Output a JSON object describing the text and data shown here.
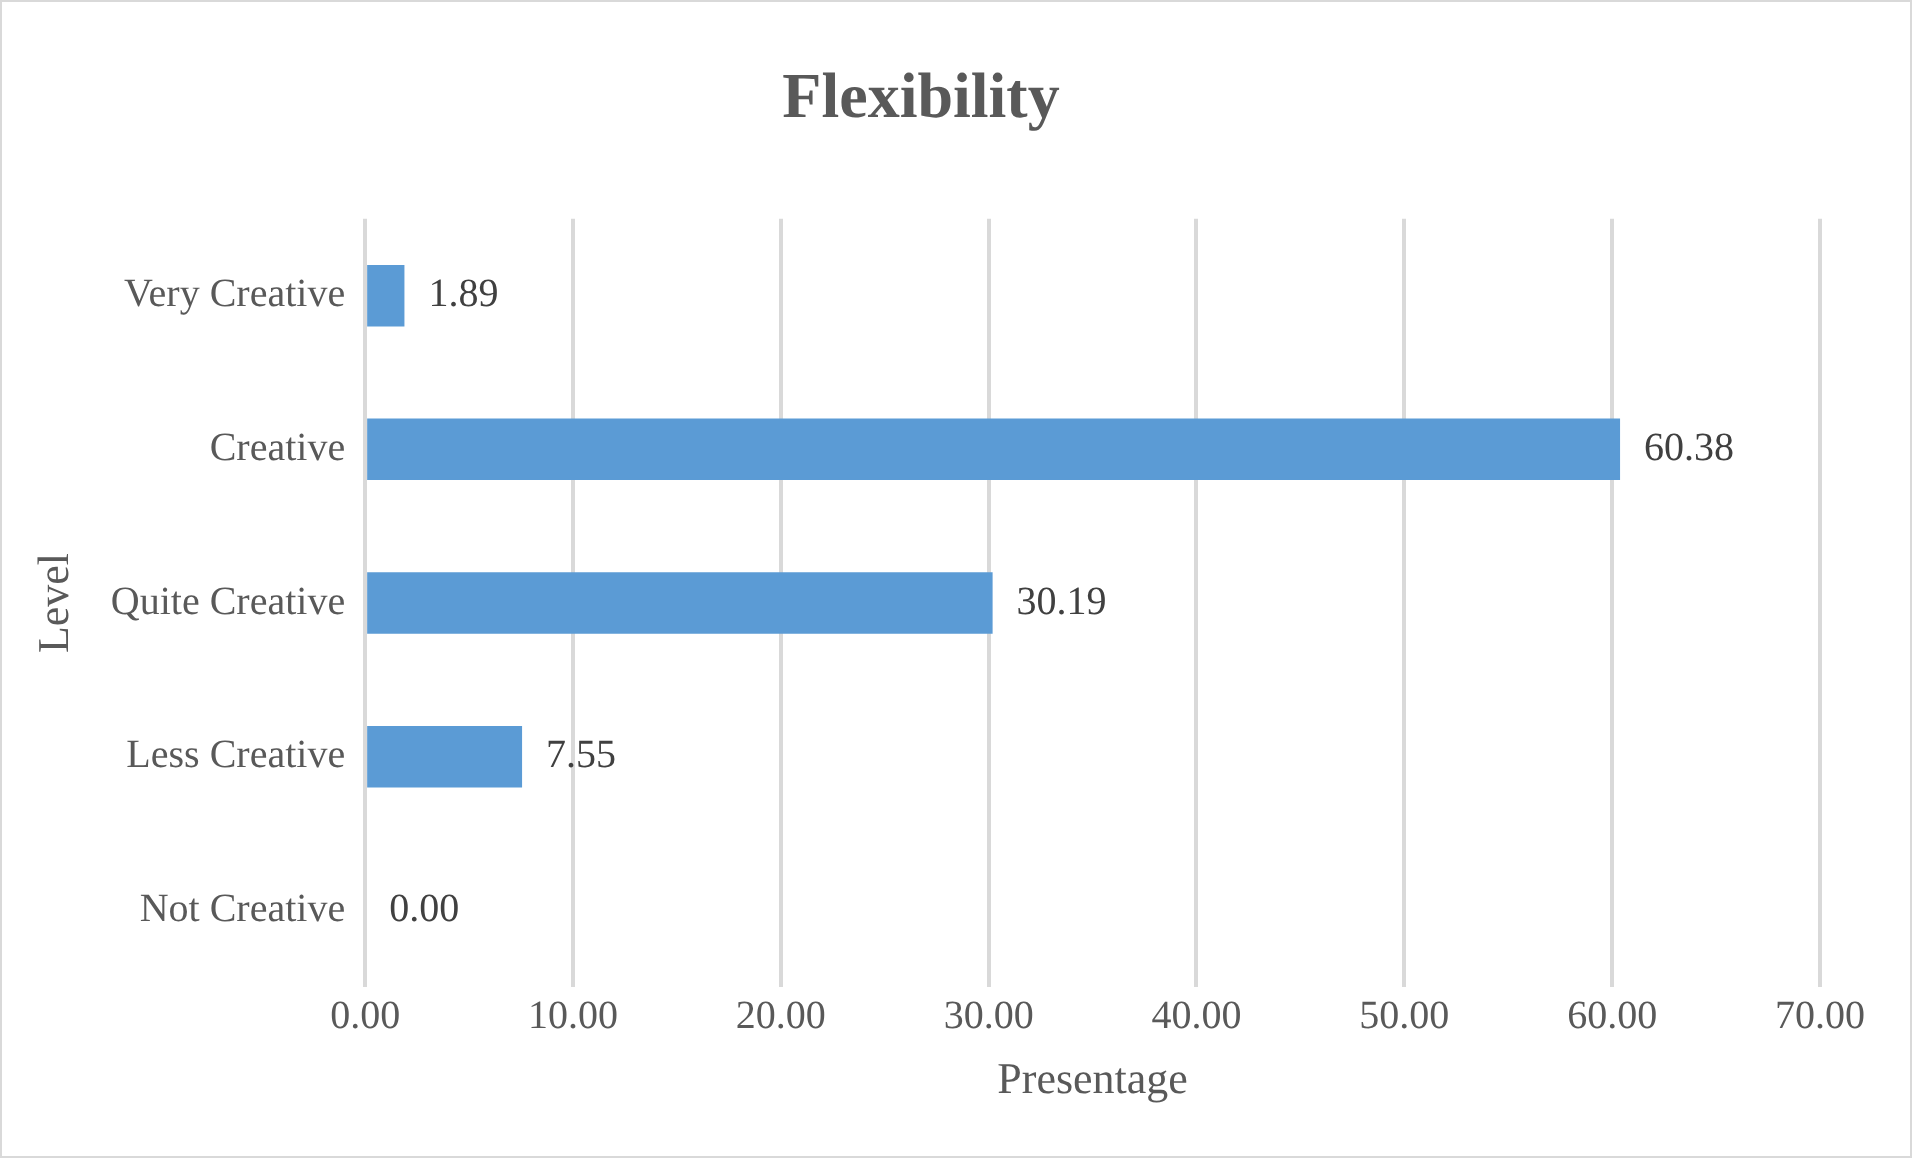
{
  "chart_data": {
    "type": "bar",
    "orientation": "horizontal",
    "title": "Flexibility",
    "xlabel": "Presentage",
    "ylabel": "Level",
    "categories": [
      "Very Creative",
      "Creative",
      "Quite Creative",
      "Less Creative",
      "Not Creative"
    ],
    "values": [
      1.89,
      60.38,
      30.19,
      7.55,
      0
    ],
    "value_labels": [
      "1.89",
      "60.38",
      "30.19",
      "7.55",
      "0.00"
    ],
    "color": "#5b9bd5",
    "xlim": [
      0,
      70
    ],
    "xticks": [
      {
        "value": 0,
        "label": "0.00"
      },
      {
        "value": 10,
        "label": "10.00"
      },
      {
        "value": 20,
        "label": "20.00"
      },
      {
        "value": 30,
        "label": "30.00"
      },
      {
        "value": 40,
        "label": "40.00"
      },
      {
        "value": 50,
        "label": "50.00"
      },
      {
        "value": 60,
        "label": "60.00"
      },
      {
        "value": 70,
        "label": "70.00"
      }
    ],
    "grid": "x",
    "legend": false
  }
}
